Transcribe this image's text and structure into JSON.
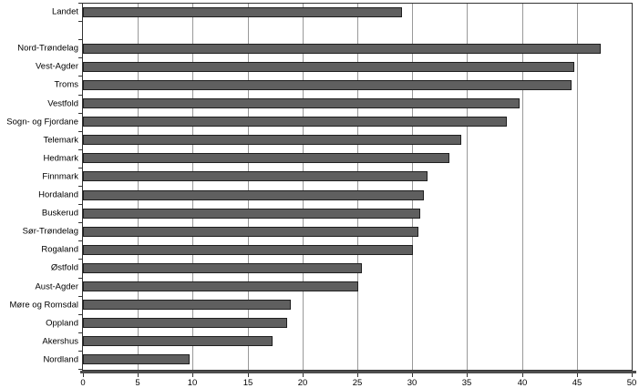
{
  "chart_data": {
    "type": "bar",
    "orientation": "horizontal",
    "title": "",
    "xlabel": "",
    "ylabel": "",
    "xlim": [
      0,
      50
    ],
    "x_ticks": [
      0,
      5,
      10,
      15,
      20,
      25,
      30,
      35,
      40,
      45,
      50
    ],
    "grid": "vertical gridlines every 5 units",
    "legend": "none",
    "rows": [
      {
        "label": "Landet",
        "value": 29.1
      },
      {
        "label": "",
        "value": null
      },
      {
        "label": "Nord-Trøndelag",
        "value": 47.2
      },
      {
        "label": "Vest-Agder",
        "value": 44.8
      },
      {
        "label": "Troms",
        "value": 44.5
      },
      {
        "label": "Vestfold",
        "value": 39.8
      },
      {
        "label": "Sogn- og Fjordane",
        "value": 38.6
      },
      {
        "label": "Telemark",
        "value": 34.5
      },
      {
        "label": "Hedmark",
        "value": 33.4
      },
      {
        "label": "Finnmark",
        "value": 31.4
      },
      {
        "label": "Hordaland",
        "value": 31.1
      },
      {
        "label": "Buskerud",
        "value": 30.7
      },
      {
        "label": "Sør-Trøndelag",
        "value": 30.6
      },
      {
        "label": "Rogaland",
        "value": 30.1
      },
      {
        "label": "Østfold",
        "value": 25.4
      },
      {
        "label": "Aust-Agder",
        "value": 25.1
      },
      {
        "label": "Møre og Romsdal",
        "value": 18.9
      },
      {
        "label": "Oppland",
        "value": 18.6
      },
      {
        "label": "Akershus",
        "value": 17.3
      },
      {
        "label": "Nordland",
        "value": 9.7
      }
    ],
    "colors": {
      "bar_fill": "#5f5f5f",
      "bar_border": "#1f1f1f",
      "gridline": "#999999",
      "plot_border": "#333333",
      "axis_line": "#4d4d4d",
      "tick": "#333333",
      "label_text": "#000000",
      "background": "#ffffff"
    }
  }
}
